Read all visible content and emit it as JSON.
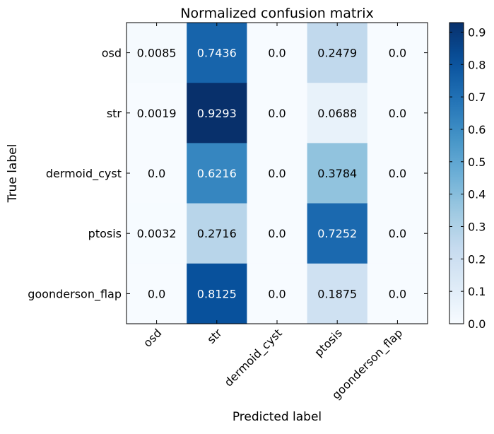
{
  "chart_data": {
    "type": "heatmap",
    "title": "Normalized confusion matrix",
    "xlabel": "Predicted label",
    "ylabel": "True label",
    "x_categories": [
      "osd",
      "str",
      "dermoid_cyst",
      "ptosis",
      "goonderson_flap"
    ],
    "y_categories": [
      "osd",
      "str",
      "dermoid_cyst",
      "ptosis",
      "goonderson_flap"
    ],
    "values": [
      [
        0.0085,
        0.7436,
        0.0,
        0.2479,
        0.0
      ],
      [
        0.0019,
        0.9293,
        0.0,
        0.0688,
        0.0
      ],
      [
        0.0,
        0.6216,
        0.0,
        0.3784,
        0.0
      ],
      [
        0.0032,
        0.2716,
        0.0,
        0.7252,
        0.0
      ],
      [
        0.0,
        0.8125,
        0.0,
        0.1875,
        0.0
      ]
    ],
    "cell_labels": [
      [
        "0.0085",
        "0.7436",
        "0.0",
        "0.2479",
        "0.0"
      ],
      [
        "0.0019",
        "0.9293",
        "0.0",
        "0.0688",
        "0.0"
      ],
      [
        "0.0",
        "0.6216",
        "0.0",
        "0.3784",
        "0.0"
      ],
      [
        "0.0032",
        "0.2716",
        "0.0",
        "0.7252",
        "0.0"
      ],
      [
        "0.0",
        "0.8125",
        "0.0",
        "0.1875",
        "0.0"
      ]
    ],
    "colormap": "Blues",
    "colorbar": {
      "range": [
        0.0,
        0.9293
      ],
      "ticks": [
        0.0,
        0.1,
        0.2,
        0.3,
        0.4,
        0.5,
        0.6,
        0.7,
        0.8,
        0.9
      ],
      "tick_labels": [
        "0.0",
        "0.1",
        "0.2",
        "0.3",
        "0.4",
        "0.5",
        "0.6",
        "0.7",
        "0.8",
        "0.9"
      ]
    },
    "text_threshold": 0.46465
  }
}
